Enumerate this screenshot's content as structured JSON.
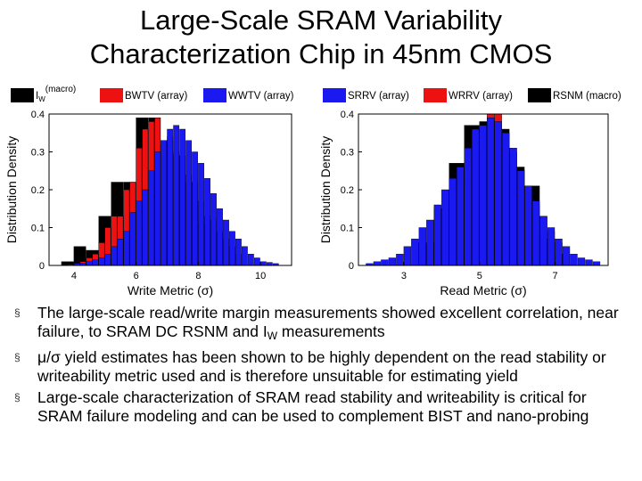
{
  "title": {
    "line1": "Large-Scale SRAM Variability",
    "line2": "Characterization Chip in 45nm CMOS"
  },
  "colors": {
    "black": "#000000",
    "red": "#ee1111",
    "blue": "#1a1af0"
  },
  "chart_data": [
    {
      "type": "bar",
      "xlabel": "Write Metric (σ)",
      "ylabel": "Distribution Density",
      "xlim": [
        3.2,
        11.0
      ],
      "ylim": [
        0,
        0.4
      ],
      "xticks": [
        "4",
        "6",
        "8",
        "10"
      ],
      "yticks": [
        "0",
        "0.1",
        "0.2",
        "0.3",
        "0.4"
      ],
      "legend": [
        "I_W (macro)",
        "BWTV (array)",
        "WWTV (array)"
      ],
      "bin_width": 0.4,
      "series": [
        {
          "name": "I_W (macro)",
          "legend_main": "I",
          "legend_sub": "W",
          "legend_suffix": " (macro)",
          "color": "black",
          "x": [
            3.8,
            4.2,
            4.6,
            5.0,
            5.4,
            5.8,
            6.2,
            6.6,
            7.0,
            7.4,
            7.8,
            8.2,
            8.6
          ],
          "values": [
            0.01,
            0.05,
            0.04,
            0.13,
            0.22,
            0.22,
            0.39,
            0.39,
            0.33,
            0.29,
            0.22,
            0.11,
            0.09
          ]
        },
        {
          "name": "BWTV (array)",
          "color": "red",
          "x": [
            4.3,
            4.5,
            4.7,
            4.9,
            5.1,
            5.3,
            5.5,
            5.7,
            5.9,
            6.1,
            6.3,
            6.5,
            6.7,
            6.9,
            7.1,
            7.3,
            7.5,
            7.7,
            7.9,
            8.1,
            8.3,
            8.5,
            8.7,
            8.9,
            9.1,
            9.3
          ],
          "values": [
            0.01,
            0.02,
            0.03,
            0.06,
            0.1,
            0.13,
            0.13,
            0.2,
            0.22,
            0.31,
            0.36,
            0.38,
            0.39,
            0.32,
            0.34,
            0.3,
            0.28,
            0.24,
            0.2,
            0.17,
            0.13,
            0.12,
            0.09,
            0.07,
            0.05,
            0.03
          ]
        },
        {
          "name": "WWTV (array)",
          "color": "blue",
          "x": [
            3.9,
            4.1,
            4.3,
            4.5,
            4.7,
            4.9,
            5.1,
            5.3,
            5.5,
            5.7,
            5.9,
            6.1,
            6.3,
            6.5,
            6.7,
            6.9,
            7.1,
            7.3,
            7.5,
            7.7,
            7.9,
            8.1,
            8.3,
            8.5,
            8.7,
            8.9,
            9.1,
            9.3,
            9.5,
            9.7,
            9.9,
            10.1,
            10.3,
            10.5
          ],
          "values": [
            0.003,
            0.005,
            0.006,
            0.01,
            0.015,
            0.02,
            0.03,
            0.05,
            0.07,
            0.09,
            0.14,
            0.17,
            0.2,
            0.25,
            0.3,
            0.33,
            0.36,
            0.37,
            0.36,
            0.33,
            0.3,
            0.27,
            0.23,
            0.19,
            0.15,
            0.12,
            0.09,
            0.07,
            0.05,
            0.03,
            0.02,
            0.01,
            0.008,
            0.005
          ]
        }
      ]
    },
    {
      "type": "bar",
      "xlabel": "Read Metric (σ)",
      "ylabel": "Distribution Density",
      "xlim": [
        1.8,
        8.4
      ],
      "ylim": [
        0,
        0.4
      ],
      "xticks": [
        "3",
        "5",
        "7"
      ],
      "yticks": [
        "0",
        "0.1",
        "0.2",
        "0.3",
        "0.4"
      ],
      "legend": [
        "SRRV (array)",
        "WRRV (array)",
        "RSNM (macro)"
      ],
      "bin_width": 0.4,
      "series": [
        {
          "name": "RSNM (macro)",
          "color": "black",
          "x": [
            3.6,
            4.0,
            4.4,
            4.8,
            5.2,
            5.6,
            6.0,
            6.4,
            6.8,
            7.2
          ],
          "values": [
            0.06,
            0.15,
            0.27,
            0.37,
            0.38,
            0.36,
            0.26,
            0.21,
            0.07,
            0.03
          ]
        },
        {
          "name": "WRRV (array)",
          "color": "red",
          "x": [
            4.3,
            4.5,
            4.7,
            4.9,
            5.1,
            5.3,
            5.5,
            5.7,
            5.9,
            6.1,
            6.3,
            6.5,
            6.7,
            6.9,
            7.1
          ],
          "values": [
            0.2,
            0.22,
            0.24,
            0.3,
            0.36,
            0.4,
            0.4,
            0.35,
            0.3,
            0.25,
            0.2,
            0.16,
            0.13,
            0.09,
            0.06
          ]
        },
        {
          "name": "SRRV (array)",
          "color": "blue",
          "x": [
            2.1,
            2.3,
            2.5,
            2.7,
            2.9,
            3.1,
            3.3,
            3.5,
            3.7,
            3.9,
            4.1,
            4.3,
            4.5,
            4.7,
            4.9,
            5.1,
            5.3,
            5.5,
            5.7,
            5.9,
            6.1,
            6.3,
            6.5,
            6.7,
            6.9,
            7.1,
            7.3,
            7.5,
            7.7,
            7.9,
            8.1
          ],
          "values": [
            0.005,
            0.01,
            0.015,
            0.02,
            0.03,
            0.05,
            0.07,
            0.1,
            0.12,
            0.16,
            0.2,
            0.23,
            0.26,
            0.31,
            0.36,
            0.37,
            0.39,
            0.38,
            0.35,
            0.31,
            0.25,
            0.21,
            0.17,
            0.13,
            0.1,
            0.07,
            0.05,
            0.03,
            0.02,
            0.015,
            0.01
          ]
        }
      ]
    }
  ],
  "bullets": [
    {
      "marker": "§",
      "text": "The large-scale read/write margin measurements showed excellent correlation, near failure, to SRAM DC RSNM and I",
      "sub": "W",
      "tail": " measurements"
    },
    {
      "marker": "§",
      "text": "μ/σ yield estimates has been shown to be highly dependent on the read stability or writeability metric used and is therefore unsuitable for estimating yield"
    },
    {
      "marker": "§",
      "text": "Large-scale characterization of SRAM read stability and writeability is critical for SRAM failure modeling and can be used to complement BIST and nano-probing"
    }
  ]
}
